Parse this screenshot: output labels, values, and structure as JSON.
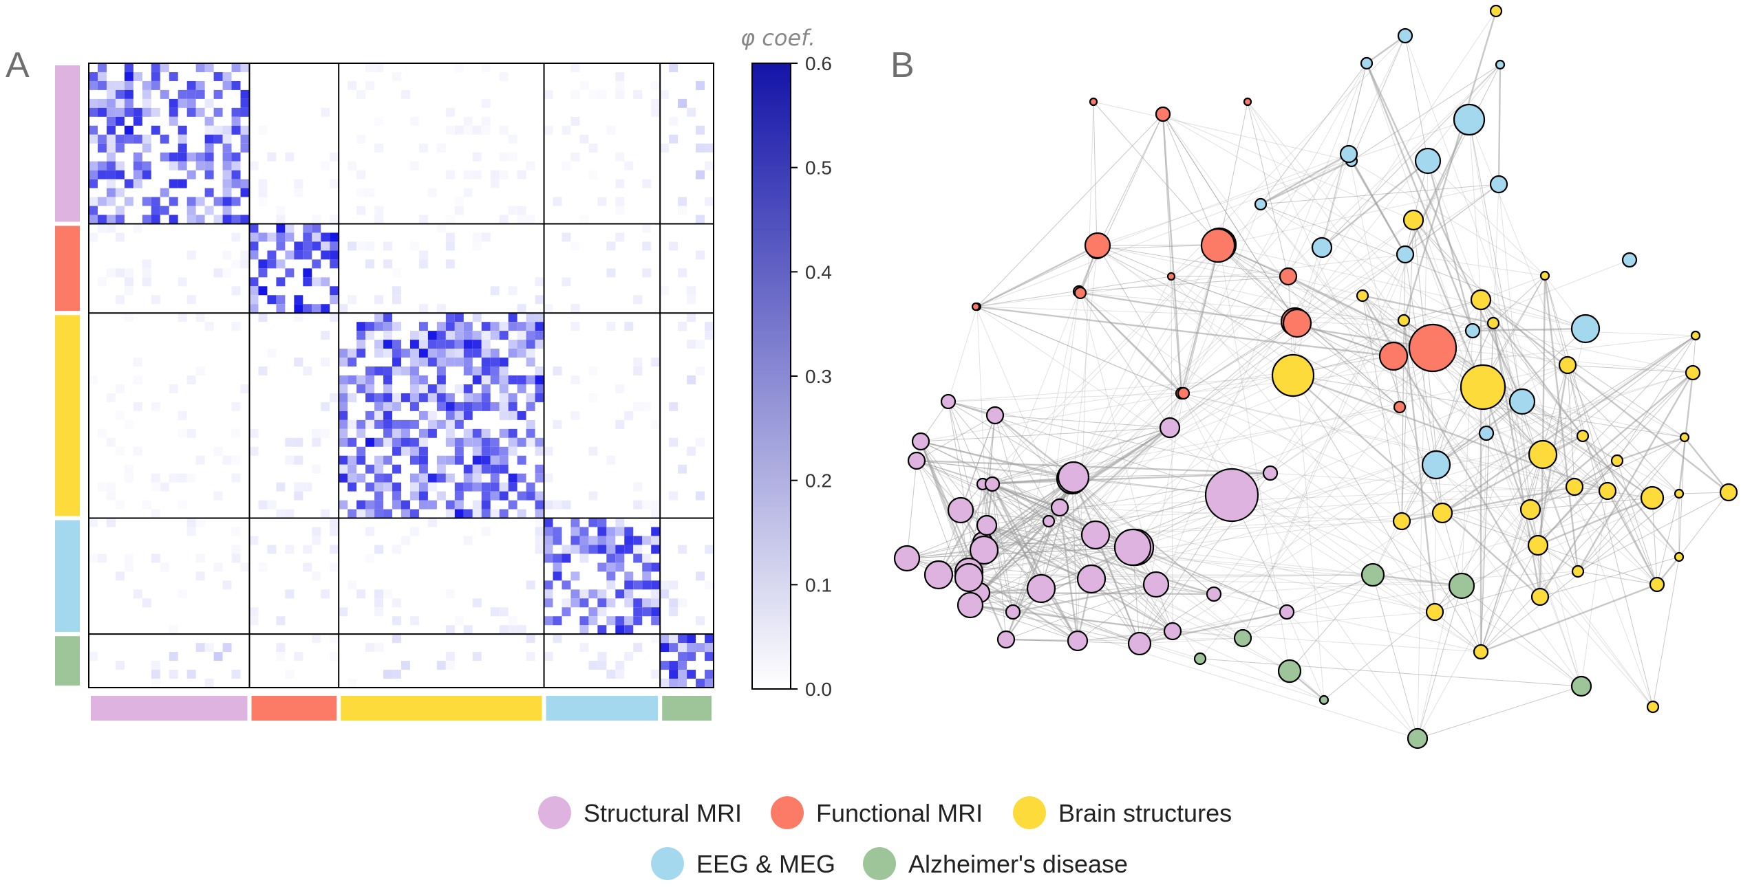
{
  "panels": {
    "a_label": "A",
    "b_label": "B"
  },
  "colors": {
    "structural_mri": "#dfb3e0",
    "functional_mri": "#fb7b66",
    "brain_structures": "#fddb3a",
    "eeg_meg": "#a3d8ef",
    "alzheimers": "#9ec59a",
    "heat_max": "#1414e6"
  },
  "legend": [
    {
      "label": "Structural MRI",
      "color": "#dfb3e0"
    },
    {
      "label": "Functional MRI",
      "color": "#fb7b66"
    },
    {
      "label": "Brain structures",
      "color": "#fddb3a"
    },
    {
      "label": "EEG & MEG",
      "color": "#a3d8ef"
    },
    {
      "label": "Alzheimer's disease",
      "color": "#9ec59a"
    }
  ],
  "chart_data": [
    {
      "type": "heatmap",
      "panel": "A",
      "colorbar_title": "φ coef.",
      "colorbar_range": [
        0.0,
        0.6
      ],
      "colorbar_ticks": [
        "0.0",
        "0.1",
        "0.2",
        "0.3",
        "0.4",
        "0.5",
        "0.6"
      ],
      "groups": [
        {
          "name": "Structural MRI",
          "size": 18
        },
        {
          "name": "Functional MRI",
          "size": 10
        },
        {
          "name": "Brain structures",
          "size": 23
        },
        {
          "name": "EEG & MEG",
          "size": 13
        },
        {
          "name": "Alzheimer's disease",
          "size": 6
        }
      ],
      "block_mean_phi": [
        [
          0.22,
          0.02,
          0.015,
          0.02,
          0.06
        ],
        [
          0.02,
          0.26,
          0.03,
          0.025,
          0.02
        ],
        [
          0.015,
          0.03,
          0.2,
          0.025,
          0.04
        ],
        [
          0.02,
          0.025,
          0.025,
          0.22,
          0.04
        ],
        [
          0.06,
          0.02,
          0.04,
          0.04,
          0.25
        ]
      ]
    },
    {
      "type": "network",
      "panel": "B",
      "node_groups": [
        "Structural MRI",
        "Functional MRI",
        "Brain structures",
        "EEG & MEG",
        "Alzheimer's disease"
      ]
    }
  ]
}
